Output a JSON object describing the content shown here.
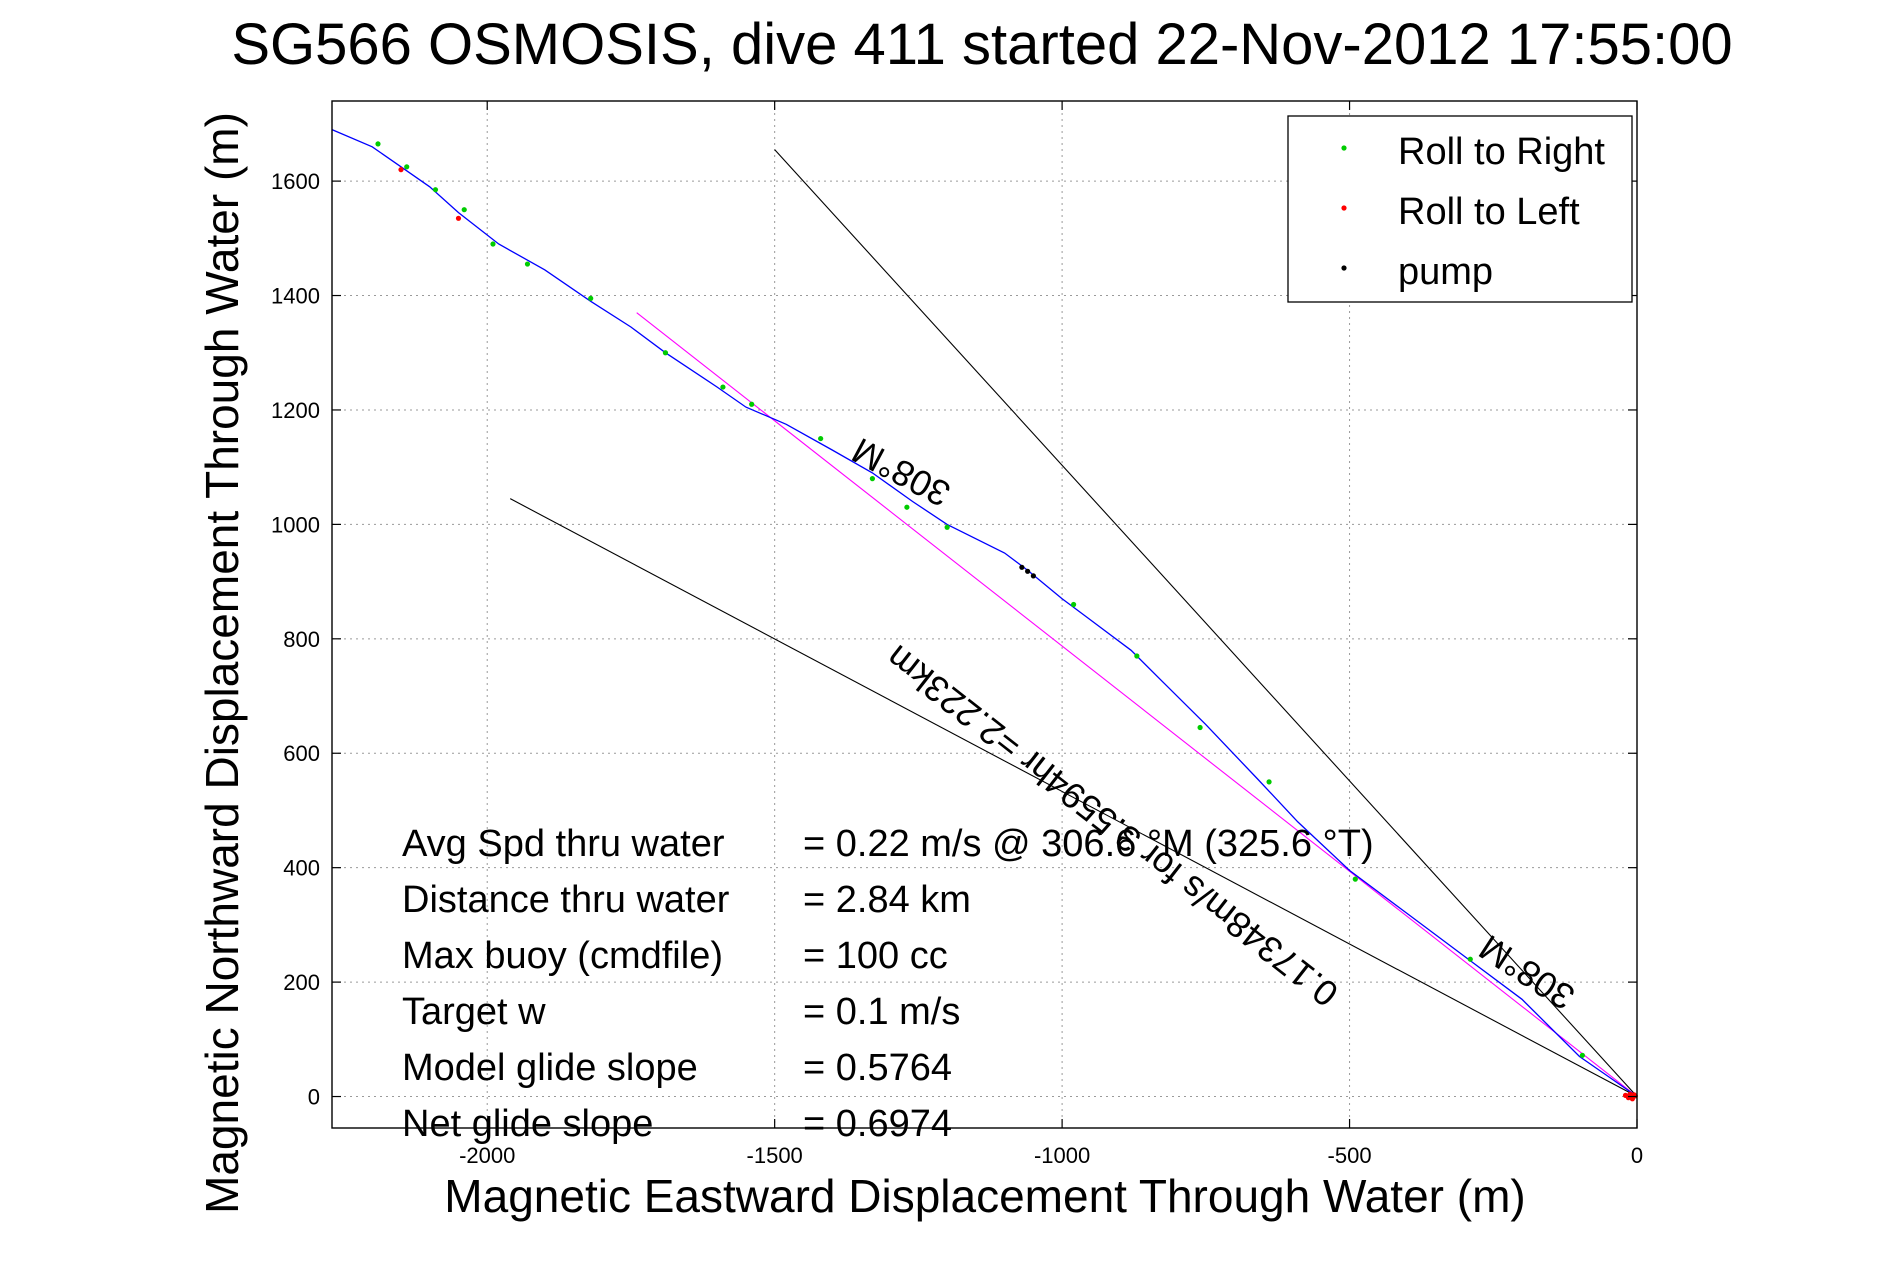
{
  "chart_data": {
    "type": "line",
    "title": "SG566 OSMOSIS, dive 411 started 22-Nov-2012 17:55:00",
    "xlabel": "Magnetic Eastward Displacement Through Water (m)",
    "ylabel": "Magnetic Northward Displacement Through Water (m)",
    "xlim": [
      -2270,
      0
    ],
    "ylim": [
      -55,
      1740
    ],
    "xticks": [
      -2000,
      -1500,
      -1000,
      -500,
      0
    ],
    "yticks": [
      0,
      200,
      400,
      600,
      800,
      1000,
      1200,
      1400,
      1600
    ],
    "grid": true,
    "legend_position": "top-right",
    "legend": [
      {
        "label": "Roll to Right",
        "color": "#00cc00"
      },
      {
        "label": "Roll to Left",
        "color": "#ff0000"
      },
      {
        "label": "pump",
        "color": "#000000"
      }
    ],
    "track": {
      "color": "#0000ff",
      "x": [
        0,
        -50,
        -100,
        -200,
        -300,
        -400,
        -500,
        -590,
        -660,
        -750,
        -830,
        -880,
        -960,
        -1000,
        -1060,
        -1100,
        -1200,
        -1260,
        -1330,
        -1400,
        -1480,
        -1550,
        -1600,
        -1690,
        -1750,
        -1820,
        -1900,
        -1980,
        -2050,
        -2100,
        -2150,
        -2200,
        -2270
      ],
      "y": [
        0,
        35,
        70,
        170,
        245,
        320,
        395,
        480,
        555,
        650,
        730,
        780,
        840,
        870,
        920,
        950,
        1000,
        1040,
        1090,
        1130,
        1175,
        1205,
        1240,
        1300,
        1345,
        1390,
        1445,
        1490,
        1545,
        1590,
        1625,
        1660,
        1690
      ]
    },
    "roll_right_points": {
      "x": [
        -95,
        -290,
        -490,
        -640,
        -760,
        -870,
        -980,
        -1200,
        -1270,
        -1330,
        -1420,
        -1540,
        -1590,
        -1690,
        -1820,
        -1930,
        -1990,
        -2040,
        -2090,
        -2140,
        -2190
      ],
      "y": [
        72,
        240,
        380,
        550,
        645,
        770,
        860,
        995,
        1030,
        1080,
        1150,
        1210,
        1240,
        1300,
        1395,
        1455,
        1490,
        1550,
        1585,
        1625,
        1665
      ]
    },
    "roll_left_points": {
      "x": [
        -2150,
        -2050,
        -10,
        -5,
        -15,
        -8,
        -20,
        -3,
        -12
      ],
      "y": [
        1620,
        1535,
        0,
        3,
        -2,
        -4,
        2,
        1,
        4
      ]
    },
    "pump_points": {
      "x": [
        -1070,
        -1060,
        -1050
      ],
      "y": [
        925,
        918,
        910
      ]
    },
    "heading_lines": [
      {
        "x": [
          0,
          -1500
        ],
        "y": [
          0,
          1655
        ],
        "color": "#000000"
      },
      {
        "x": [
          0,
          -1960
        ],
        "y": [
          0,
          1045
        ],
        "color": "#000000"
      },
      {
        "x": [
          0,
          -1740
        ],
        "y": [
          0,
          1370
        ],
        "color": "#ff00ff"
      }
    ],
    "line_labels": [
      {
        "text": "308°M",
        "x": -1270,
        "y": 1110,
        "angle": 208
      },
      {
        "text": "308°M",
        "x": -180,
        "y": 235,
        "angle": 213
      },
      {
        "text": "0.17348m/s for 3.5594hr =2.223km",
        "x": -900,
        "y": 490,
        "angle": 218
      }
    ],
    "stats": [
      {
        "label": "Avg Spd thru water",
        "value": "=  0.22 m/s @ 306.6 °M (325.6 °T)"
      },
      {
        "label": "Distance thru water",
        "value": "=  2.84 km"
      },
      {
        "label": "Max buoy (cmdfile)",
        "value": "= 100 cc"
      },
      {
        "label": "Target w",
        "value": "= 0.1 m/s"
      },
      {
        "label": "Model glide slope",
        "value": "= 0.5764"
      },
      {
        "label": "Net glide slope",
        "value": "= 0.6974"
      }
    ]
  }
}
